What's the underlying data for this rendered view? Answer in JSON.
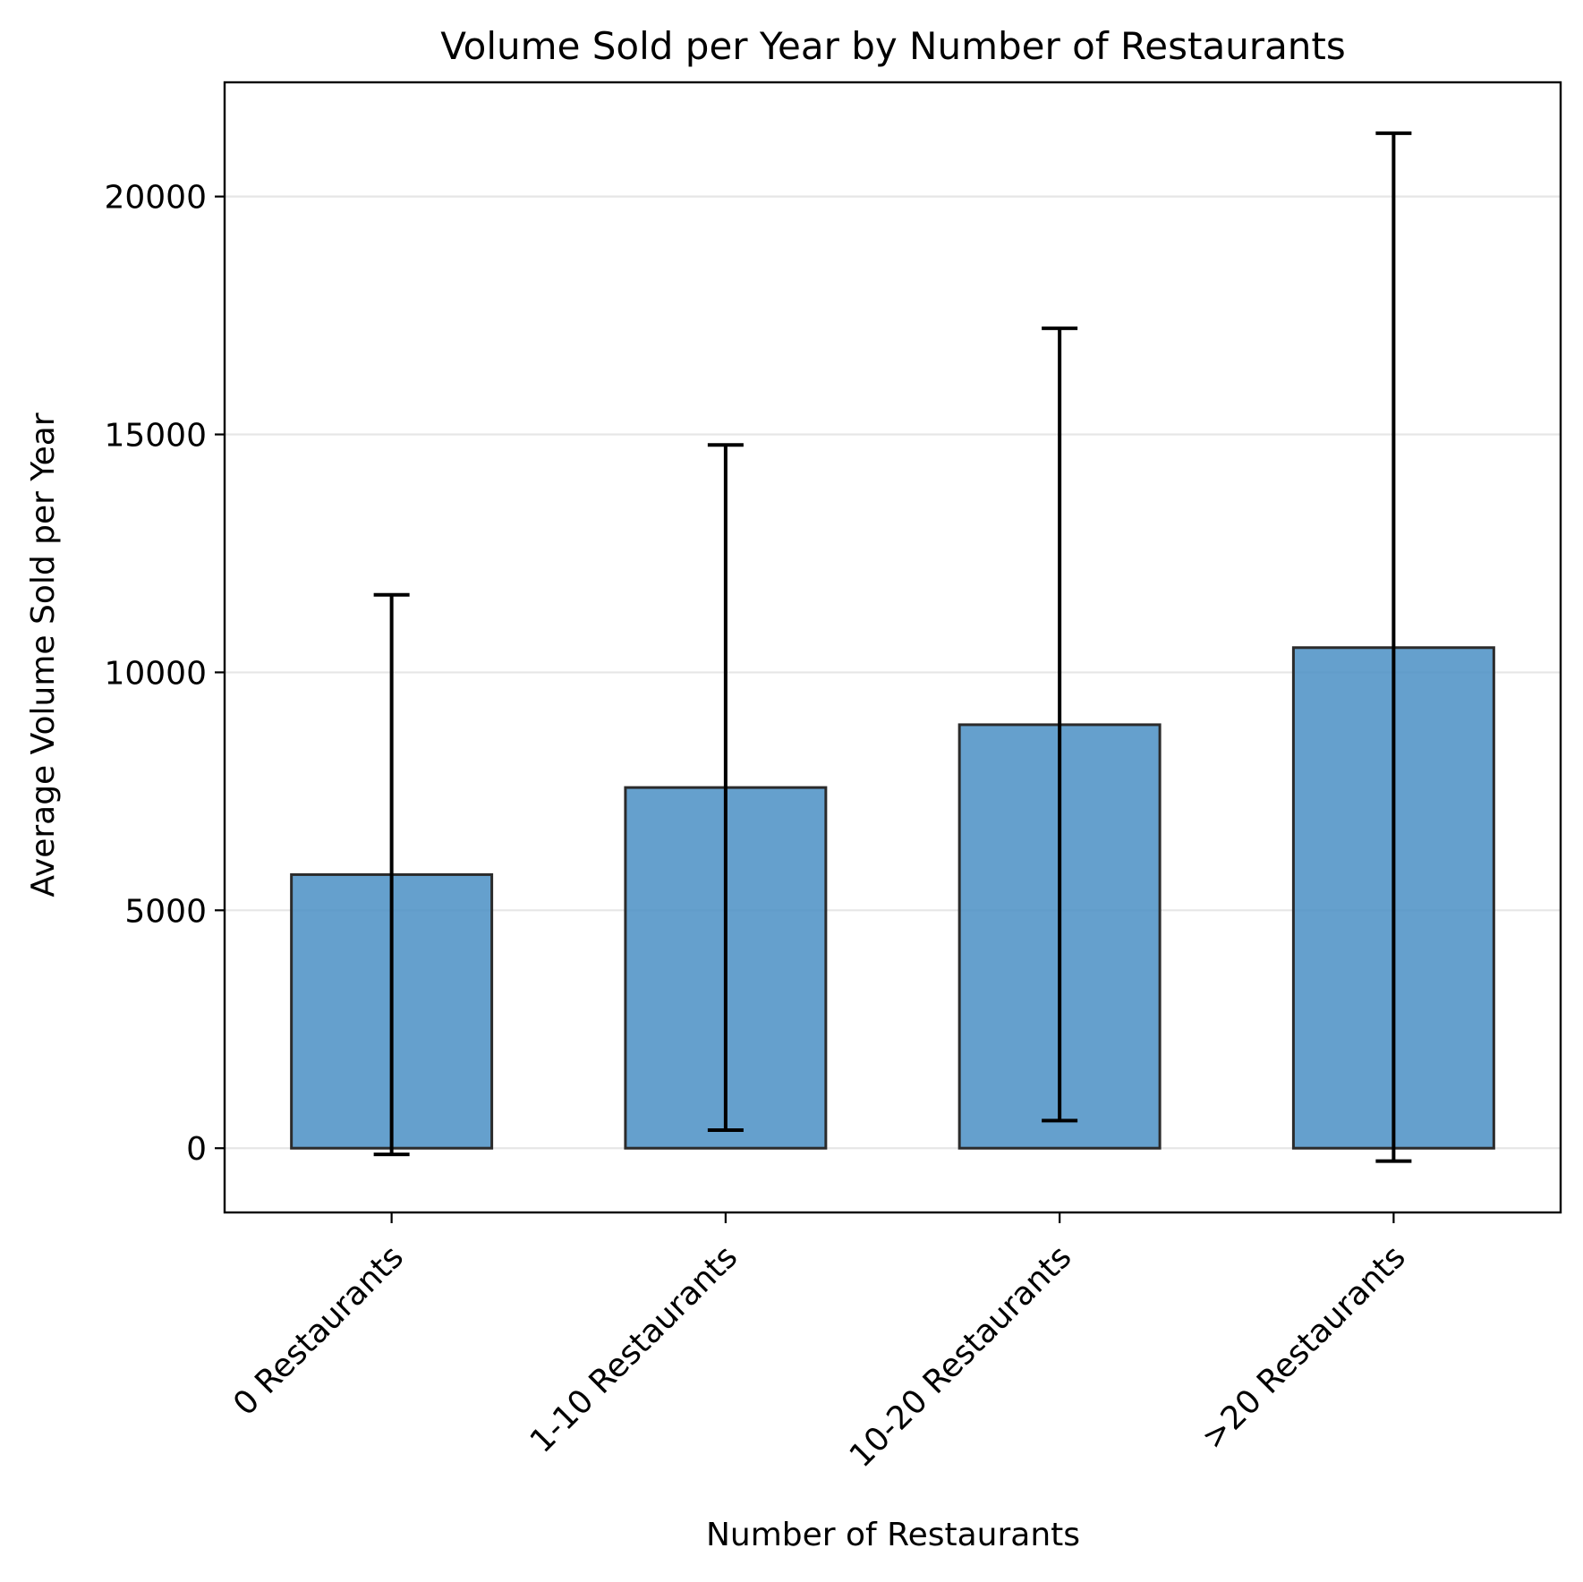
{
  "chart_data": {
    "type": "bar",
    "title": "Volume Sold per Year by Number of Restaurants",
    "xlabel": "Number of Restaurants",
    "ylabel": "Average Volume Sold per Year",
    "categories": [
      "0 Restaurants",
      "1-10 Restaurants",
      "10-20 Restaurants",
      ">20 Restaurants"
    ],
    "values": [
      5750,
      7580,
      8900,
      10520
    ],
    "error_bars": {
      "lower": [
        -130,
        380,
        580,
        -270
      ],
      "upper": [
        11630,
        14780,
        17230,
        21330
      ]
    },
    "ylim": [
      -1350,
      22400
    ],
    "yticks": [
      0,
      5000,
      10000,
      15000,
      20000
    ],
    "grid": "y",
    "legend": "none",
    "colors": {
      "bar_fill": "#4a8fc4",
      "bar_edge": "#2b2b2b",
      "error_bar": "#000000",
      "grid": "#e6e6e6"
    }
  }
}
